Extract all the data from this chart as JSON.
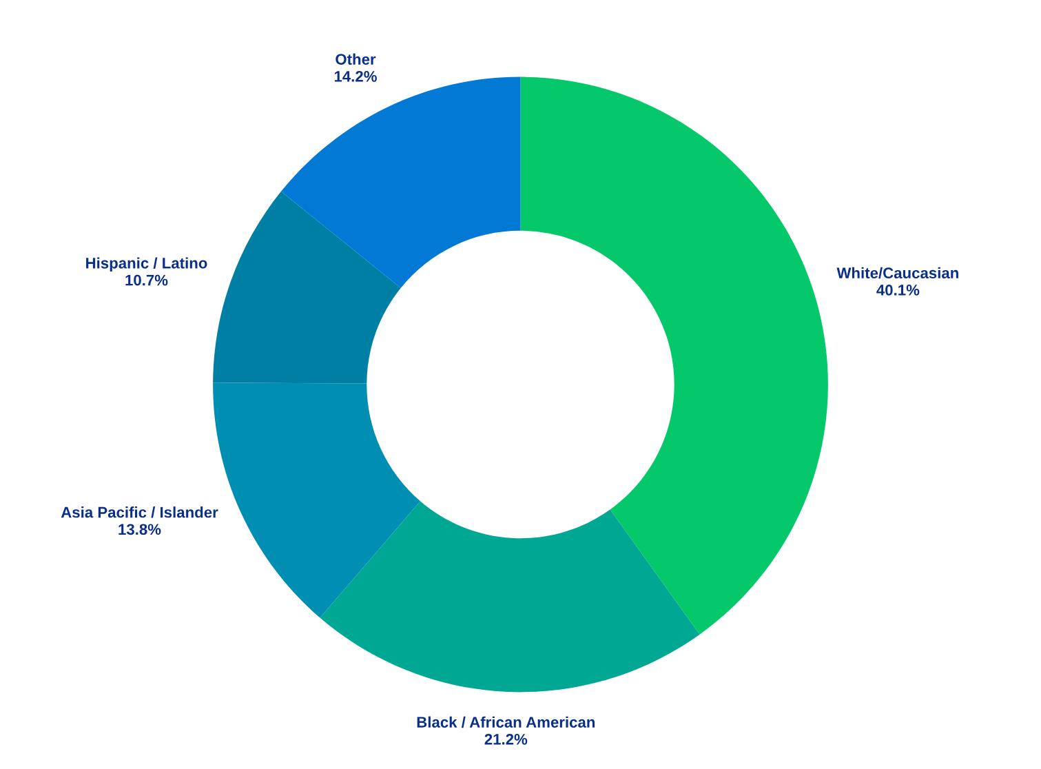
{
  "chart_data": {
    "type": "donut",
    "categories": [
      "White/Caucasian",
      "Black / African American",
      "Asia Pacific / Islander",
      "Hispanic / Latino",
      "Other"
    ],
    "values": [
      40.1,
      21.2,
      13.8,
      10.7,
      14.2
    ],
    "colors": [
      "#05c86a",
      "#00a894",
      "#008fb2",
      "#007fa5",
      "#0379d6"
    ],
    "value_labels": [
      "40.1%",
      "21.2%",
      "13.8%",
      "10.7%",
      "14.2%"
    ]
  }
}
